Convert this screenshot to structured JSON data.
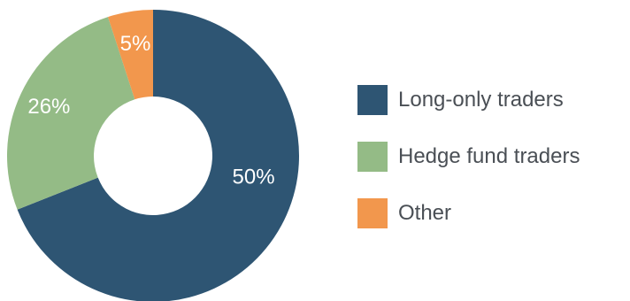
{
  "chart_data": {
    "type": "pie",
    "variant": "donut",
    "title": "",
    "categories": [
      "Long-only traders",
      "Hedge fund traders",
      "Other"
    ],
    "values": [
      50,
      26,
      5
    ],
    "labels": [
      "50%",
      "26%",
      "5%"
    ],
    "colors": [
      "#2e5573",
      "#94bb86",
      "#f2974d"
    ],
    "legend": "right",
    "legend_entries": [
      {
        "label": "Long-only traders",
        "color": "#2e5573"
      },
      {
        "label": "Hedge fund traders",
        "color": "#94bb86"
      },
      {
        "label": "Other",
        "color": "#f2974d"
      }
    ]
  }
}
